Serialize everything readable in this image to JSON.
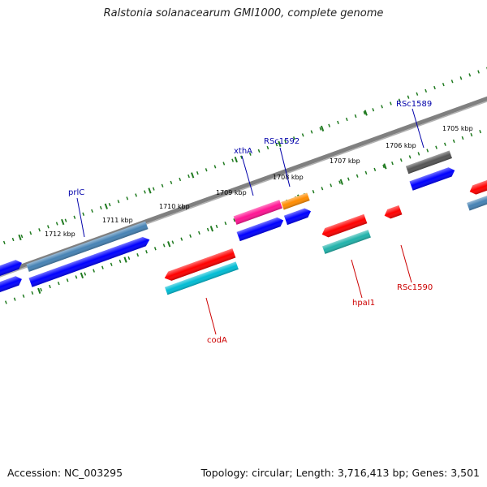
{
  "title": "Ralstonia solanacearum GMI1000, complete genome",
  "accession": "Accession: NC_003295",
  "summary": "Topology: circular; Length: 3,716,413 bp; Genes: 3,501",
  "colors": {
    "backbone": "#808080",
    "ticks": "#1f7a1f",
    "label_forward": "#0000aa",
    "label_reverse": "#cc0000",
    "cds_blue": "#0000ff",
    "steelblue": "#4682b4",
    "red": "#ff0000",
    "magenta": "#ff1493",
    "orange": "#ff8c00",
    "cyan": "#00bcd4",
    "teal": "#20b2aa",
    "gray": "#555555"
  },
  "kbp_labels": [
    "1712 kbp",
    "1711 kbp",
    "1710 kbp",
    "1709 kbp",
    "1708 kbp",
    "1707 kbp",
    "1706 kbp",
    "1705 kbp"
  ],
  "gene_labels": {
    "prlC": "prlC",
    "xthA": "xthA",
    "RSc1592": "RSc1592",
    "RSc1589": "RSc1589",
    "codA": "codA",
    "hpaI1": "hpaI1",
    "RSc1590": "RSc1590"
  }
}
